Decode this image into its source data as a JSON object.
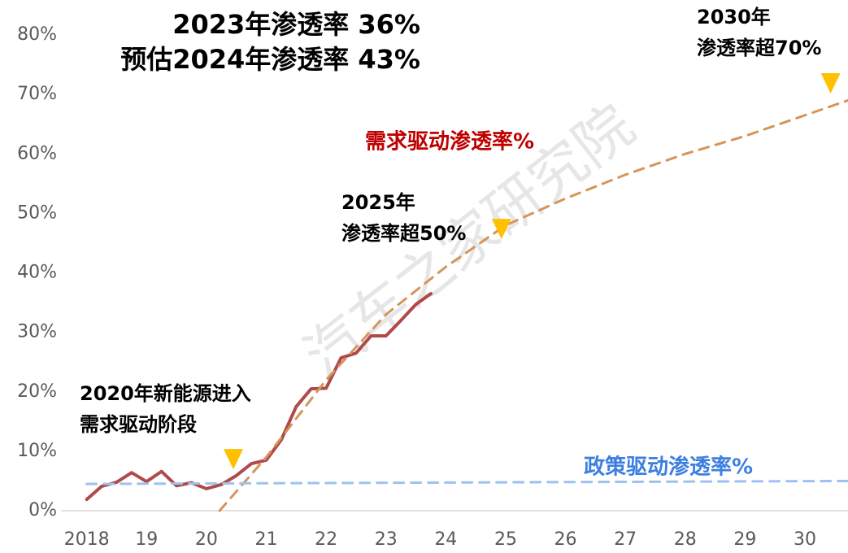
{
  "chart_data": {
    "type": "line",
    "title_lines": [
      "2023年渗透率 36%",
      "预估2024年渗透率 43%"
    ],
    "watermark": "汽车之家研究院",
    "xlim": [
      2017.57,
      2030.72
    ],
    "ylim": [
      0,
      80
    ],
    "xticks": [
      {
        "value": 2018,
        "label": "2018"
      },
      {
        "value": 2019,
        "label": "19"
      },
      {
        "value": 2020,
        "label": "20"
      },
      {
        "value": 2021,
        "label": "21"
      },
      {
        "value": 2022,
        "label": "22"
      },
      {
        "value": 2023,
        "label": "23"
      },
      {
        "value": 2024,
        "label": "24"
      },
      {
        "value": 2025,
        "label": "25"
      },
      {
        "value": 2026,
        "label": "26"
      },
      {
        "value": 2027,
        "label": "27"
      },
      {
        "value": 2028,
        "label": "28"
      },
      {
        "value": 2029,
        "label": "29"
      },
      {
        "value": 2030,
        "label": "30"
      }
    ],
    "yticks": [
      {
        "value": 0,
        "label": "0%"
      },
      {
        "value": 10,
        "label": "10%"
      },
      {
        "value": 20,
        "label": "20%"
      },
      {
        "value": 30,
        "label": "30%"
      },
      {
        "value": 40,
        "label": "40%"
      },
      {
        "value": 50,
        "label": "50%"
      },
      {
        "value": 60,
        "label": "60%"
      },
      {
        "value": 70,
        "label": "70%"
      },
      {
        "value": 80,
        "label": "80%"
      }
    ],
    "series": [
      {
        "color": "#b04a4a",
        "dash": false,
        "width": 4,
        "x": [
          2018,
          2018.25,
          2018.5,
          2018.75,
          2019,
          2019.25,
          2019.5,
          2019.75,
          2020,
          2020.25,
          2020.5,
          2020.75,
          2021,
          2021.25,
          2021.5,
          2021.75,
          2022,
          2022.25,
          2022.5,
          2022.75,
          2023,
          2023.25,
          2023.5,
          2023.75
        ],
        "values": [
          1.9,
          4.1,
          4.8,
          6.4,
          4.9,
          6.6,
          4.2,
          4.7,
          3.7,
          4.4,
          5.9,
          7.9,
          8.5,
          11.9,
          17.5,
          20.5,
          20.6,
          25.7,
          26.5,
          29.4,
          29.4,
          32,
          34.7,
          36.5
        ]
      },
      {
        "name": "需求驱动渗透率%",
        "color": "#d4955a",
        "label_color": "#c00000",
        "dash": true,
        "width": 3,
        "x": [
          2020.22,
          2021,
          2022,
          2023,
          2024,
          2025,
          2026,
          2027,
          2028,
          2029,
          2030,
          2030.72
        ],
        "values": [
          0,
          9,
          22,
          33,
          41,
          48,
          52.5,
          56.5,
          60,
          63,
          66.5,
          69
        ]
      },
      {
        "name": "政策驱动渗透率%",
        "color": "#9ec0f2",
        "label_color": "#3d7fe0",
        "dash": true,
        "width": 3,
        "x": [
          2018,
          2030.72
        ],
        "values": [
          4.5,
          5
        ]
      }
    ],
    "markers": {
      "color": "#ffc000",
      "x": [
        2020.45,
        2024.93,
        2030.43
      ],
      "values": [
        8.6,
        47.3,
        71.8
      ]
    },
    "annotations": [
      [
        "2020年新能源进入",
        "需求驱动阶段"
      ],
      [
        "2025年",
        "渗透率超50%"
      ],
      [
        "2030年",
        "渗透率超70%"
      ]
    ]
  }
}
